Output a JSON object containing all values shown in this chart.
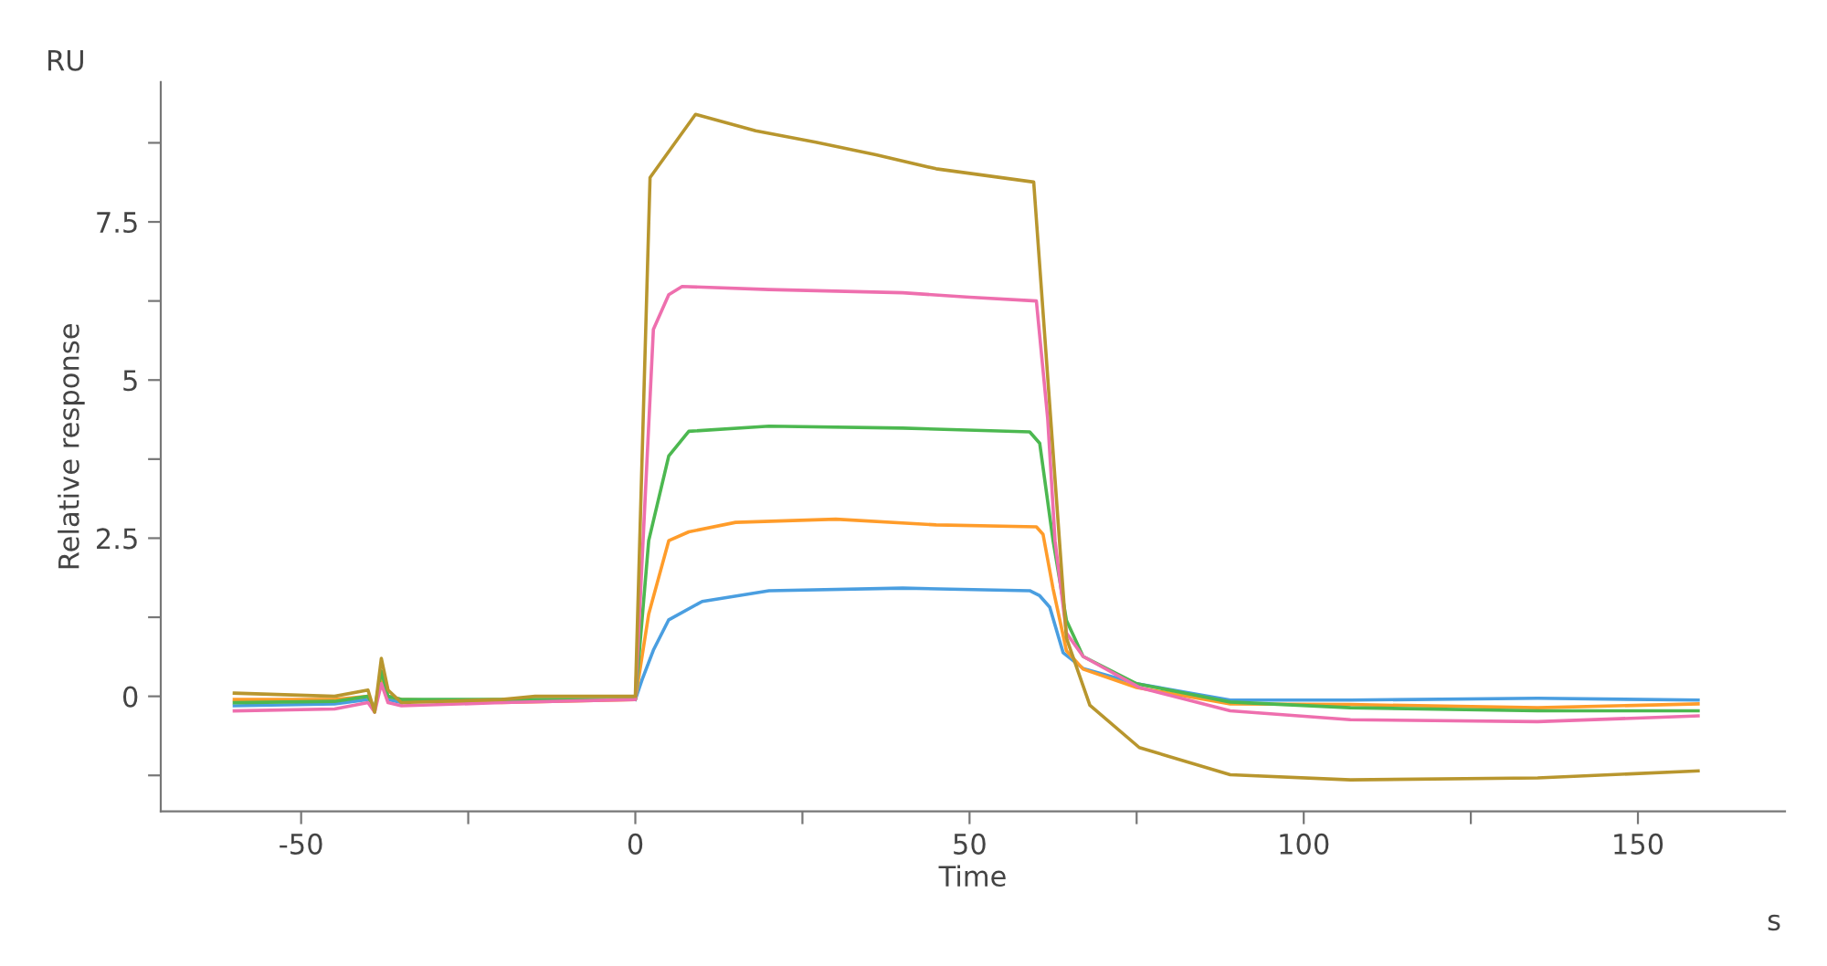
{
  "chart_data": {
    "type": "line",
    "xlabel": "Time",
    "ylabel": "Relative response",
    "annotations": [
      "RU",
      "s"
    ],
    "xlim": [
      -71,
      172
    ],
    "ylim": [
      -1.82,
      9.71
    ],
    "xticks": [
      -50,
      {
        "value": -25,
        "label": null
      },
      0,
      {
        "value": 25,
        "label": null
      },
      50,
      {
        "value": 75,
        "label": null
      },
      100,
      {
        "value": 125,
        "label": null
      },
      150
    ],
    "yticks": [
      {
        "value": -1.25,
        "label": null
      },
      0,
      {
        "value": 1.25,
        "label": null
      },
      2.5,
      {
        "value": 3.75,
        "label": null
      },
      5,
      {
        "value": 6.25,
        "label": null
      },
      7.5,
      {
        "value": 8.75,
        "label": null
      }
    ],
    "grid": false,
    "legend": false,
    "marker": "none",
    "line_style": "solid",
    "series": [
      {
        "color": "#4a9ee0",
        "x": [
          -60,
          -45,
          -40,
          -39,
          -38,
          -37,
          -35,
          -20,
          0,
          1,
          2.7,
          5,
          10,
          20,
          40,
          59,
          60.5,
          62,
          64,
          67,
          75,
          89,
          107,
          135,
          159
        ],
        "values": [
          -0.15,
          -0.12,
          -0.05,
          null,
          null,
          -0.05,
          -0.1,
          null,
          -0.05,
          0.26,
          0.73,
          1.21,
          1.5,
          1.67,
          1.71,
          1.67,
          1.59,
          1.41,
          0.69,
          0.44,
          0.2,
          -0.06,
          -0.06,
          -0.03,
          -0.06
        ]
      },
      {
        "color": "#ff9c2a",
        "x": [
          -60,
          -45,
          -40,
          -39,
          -38,
          -37,
          -35,
          -20,
          0,
          2,
          5,
          8,
          15,
          30,
          45,
          60,
          61,
          62.5,
          64.5,
          67,
          75,
          89,
          107,
          135,
          159
        ],
        "values": [
          -0.05,
          -0.05,
          0.0,
          -0.2,
          0.3,
          0.0,
          -0.05,
          -0.1,
          -0.05,
          1.3,
          2.46,
          2.6,
          2.75,
          2.8,
          2.71,
          2.68,
          2.56,
          1.7,
          0.72,
          0.43,
          0.14,
          -0.12,
          -0.13,
          -0.18,
          -0.12
        ]
      },
      {
        "color": "#4cb850",
        "x": [
          -60,
          -45,
          -40,
          -39,
          -38,
          -37,
          -35,
          -20,
          0,
          2,
          5,
          8,
          20,
          40,
          59,
          60.5,
          62.5,
          64.5,
          67,
          75,
          89,
          107,
          135,
          159
        ],
        "values": [
          -0.1,
          -0.08,
          0.0,
          -0.2,
          0.4,
          0.0,
          -0.05,
          -0.05,
          -0.05,
          2.46,
          3.8,
          4.19,
          4.27,
          4.24,
          4.18,
          4.0,
          2.46,
          1.2,
          0.63,
          0.2,
          -0.09,
          -0.18,
          -0.23,
          -0.23
        ]
      },
      {
        "color": "#ee6fae",
        "x": [
          -60,
          -45,
          -40,
          -39,
          -38,
          -37,
          -35,
          -20,
          0,
          2.7,
          5,
          7,
          20,
          40,
          50,
          60,
          61.7,
          62.8,
          64.5,
          67,
          75.4,
          89,
          107,
          135,
          159
        ],
        "values": [
          -0.23,
          -0.2,
          -0.1,
          -0.25,
          0.2,
          -0.1,
          -0.15,
          -0.1,
          -0.05,
          5.8,
          6.35,
          6.48,
          6.43,
          6.38,
          6.31,
          6.25,
          4.38,
          2.45,
          1.0,
          0.63,
          0.14,
          -0.23,
          -0.37,
          -0.4,
          -0.31
        ]
      },
      {
        "color": "#b8962e",
        "x": [
          -60,
          -45,
          -40,
          -39,
          -38,
          -37,
          -35,
          -20,
          -15,
          0,
          2.2,
          9,
          18,
          27,
          36,
          45,
          59.6,
          64.5,
          68,
          75.4,
          89,
          107,
          135,
          159
        ],
        "values": [
          0.05,
          0.0,
          0.1,
          -0.25,
          0.6,
          0.1,
          -0.1,
          -0.05,
          0.0,
          0.0,
          8.2,
          9.2,
          8.94,
          8.76,
          8.56,
          8.34,
          8.13,
          0.92,
          -0.14,
          -0.81,
          -1.24,
          -1.32,
          -1.29,
          -1.18
        ]
      }
    ]
  }
}
